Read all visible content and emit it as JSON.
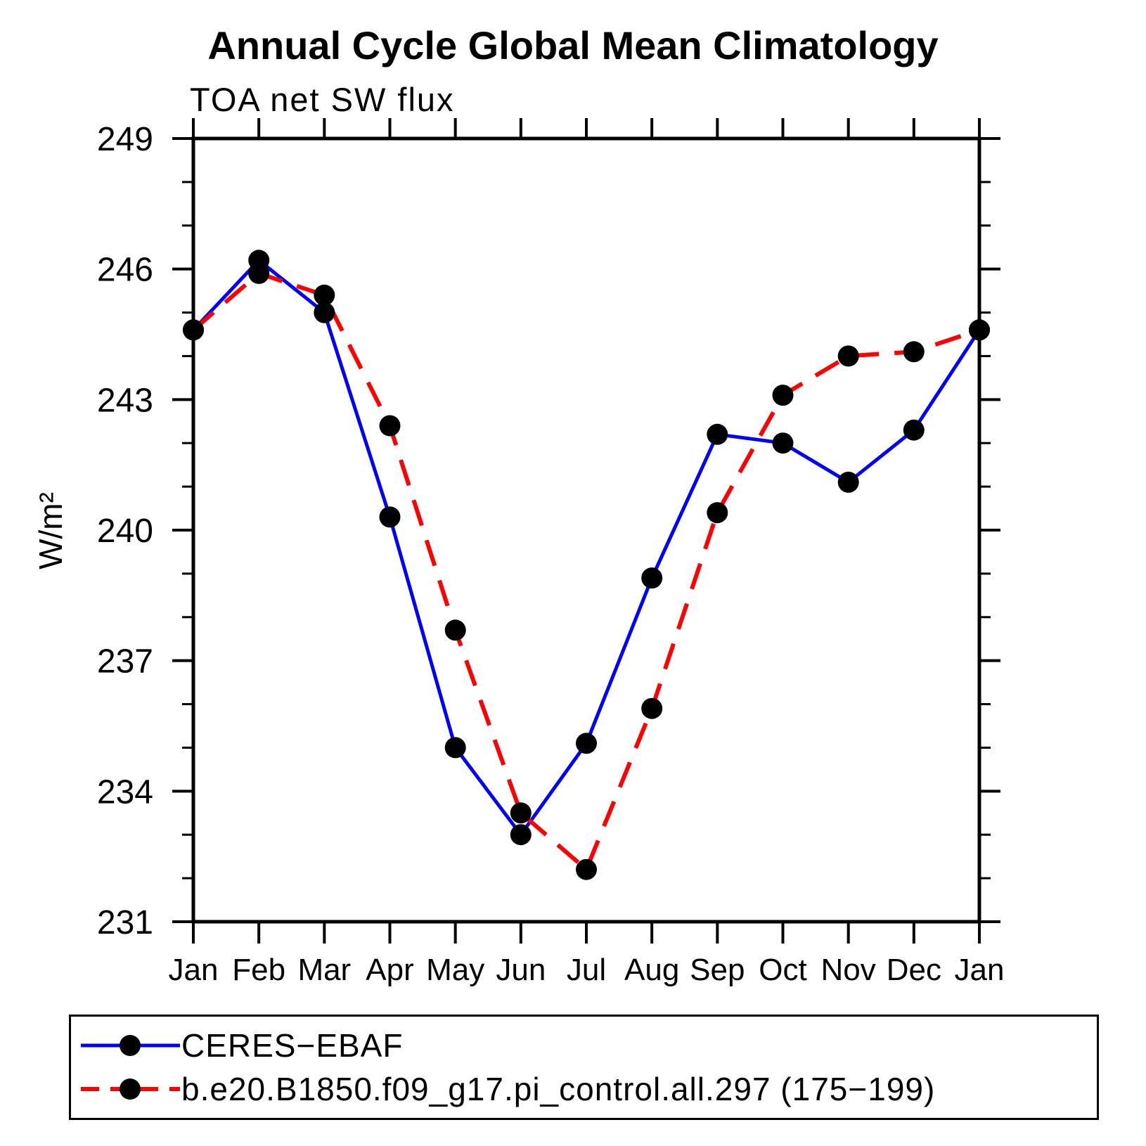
{
  "title": "Annual Cycle Global Mean Climatology",
  "subtitle": "TOA net SW flux",
  "chart_data": {
    "type": "line",
    "title": "Annual Cycle Global Mean Climatology",
    "subtitle": "TOA net SW flux",
    "ylabel": "W/m²",
    "x_categories": [
      "Jan",
      "Feb",
      "Mar",
      "Apr",
      "May",
      "Jun",
      "Jul",
      "Aug",
      "Sep",
      "Oct",
      "Nov",
      "Dec",
      "Jan"
    ],
    "ylim": [
      231,
      249
    ],
    "y_major_ticks": [
      231,
      234,
      237,
      240,
      243,
      246,
      249
    ],
    "y_minor_step": 1,
    "grid": false,
    "ticks_outward": true,
    "legend_position": "bottom-left",
    "axis_color": "#000000",
    "series": [
      {
        "name": "CERES−EBAF",
        "color": "#0000ff",
        "line_style": "solid",
        "marker": "circle",
        "marker_color": "#000000",
        "values": [
          244.6,
          246.2,
          245.0,
          240.3,
          235.0,
          233.0,
          235.1,
          238.9,
          242.2,
          242.0,
          241.1,
          242.3,
          244.6
        ]
      },
      {
        "name": "b.e20.B1850.f09_g17.pi_control.all.297 (175−199)",
        "color": "#ff0000",
        "line_style": "dashed",
        "marker": "circle",
        "marker_color": "#000000",
        "values": [
          244.6,
          245.9,
          245.4,
          242.4,
          237.7,
          233.5,
          232.2,
          235.9,
          240.4,
          243.1,
          244.0,
          244.1,
          244.6
        ]
      }
    ]
  }
}
